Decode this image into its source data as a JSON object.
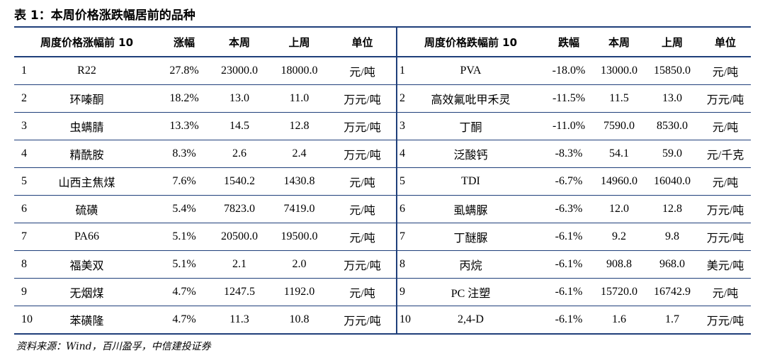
{
  "title": "表 1：本周价格涨跌幅居前的品种",
  "headers": {
    "rise_name": "周度价格涨幅前 10",
    "rise_pct": "涨幅",
    "this_week": "本周",
    "last_week": "上周",
    "unit": "单位",
    "fall_name": "周度价格跌幅前 10",
    "fall_pct": "跌幅",
    "this_week_2": "本周",
    "last_week_2": "上周",
    "unit_2": "单位"
  },
  "rows": [
    {
      "l_rank": "1",
      "l_name": "R22",
      "l_pct": "27.8%",
      "l_now": "23000.0",
      "l_prev": "18000.0",
      "l_unit": "元/吨",
      "r_rank": "1",
      "r_name": "PVA",
      "r_pct": "-18.0%",
      "r_now": "13000.0",
      "r_prev": "15850.0",
      "r_unit": "元/吨"
    },
    {
      "l_rank": "2",
      "l_name": "环嗪酮",
      "l_pct": "18.2%",
      "l_now": "13.0",
      "l_prev": "11.0",
      "l_unit": "万元/吨",
      "r_rank": "2",
      "r_name": "高效氟吡甲禾灵",
      "r_pct": "-11.5%",
      "r_now": "11.5",
      "r_prev": "13.0",
      "r_unit": "万元/吨"
    },
    {
      "l_rank": "3",
      "l_name": "虫螨腈",
      "l_pct": "13.3%",
      "l_now": "14.5",
      "l_prev": "12.8",
      "l_unit": "万元/吨",
      "r_rank": "3",
      "r_name": "丁酮",
      "r_pct": "-11.0%",
      "r_now": "7590.0",
      "r_prev": "8530.0",
      "r_unit": "元/吨"
    },
    {
      "l_rank": "4",
      "l_name": "精酰胺",
      "l_pct": "8.3%",
      "l_now": "2.6",
      "l_prev": "2.4",
      "l_unit": "万元/吨",
      "r_rank": "4",
      "r_name": "泛酸钙",
      "r_pct": "-8.3%",
      "r_now": "54.1",
      "r_prev": "59.0",
      "r_unit": "元/千克"
    },
    {
      "l_rank": "5",
      "l_name": "山西主焦煤",
      "l_pct": "7.6%",
      "l_now": "1540.2",
      "l_prev": "1430.8",
      "l_unit": "元/吨",
      "r_rank": "5",
      "r_name": "TDI",
      "r_pct": "-6.7%",
      "r_now": "14960.0",
      "r_prev": "16040.0",
      "r_unit": "元/吨"
    },
    {
      "l_rank": "6",
      "l_name": "硫磺",
      "l_pct": "5.4%",
      "l_now": "7823.0",
      "l_prev": "7419.0",
      "l_unit": "元/吨",
      "r_rank": "6",
      "r_name": "虱螨脲",
      "r_pct": "-6.3%",
      "r_now": "12.0",
      "r_prev": "12.8",
      "r_unit": "万元/吨"
    },
    {
      "l_rank": "7",
      "l_name": "PA66",
      "l_pct": "5.1%",
      "l_now": "20500.0",
      "l_prev": "19500.0",
      "l_unit": "元/吨",
      "r_rank": "7",
      "r_name": "丁醚脲",
      "r_pct": "-6.1%",
      "r_now": "9.2",
      "r_prev": "9.8",
      "r_unit": "万元/吨"
    },
    {
      "l_rank": "8",
      "l_name": "福美双",
      "l_pct": "5.1%",
      "l_now": "2.1",
      "l_prev": "2.0",
      "l_unit": "万元/吨",
      "r_rank": "8",
      "r_name": "丙烷",
      "r_pct": "-6.1%",
      "r_now": "908.8",
      "r_prev": "968.0",
      "r_unit": "美元/吨"
    },
    {
      "l_rank": "9",
      "l_name": "无烟煤",
      "l_pct": "4.7%",
      "l_now": "1247.5",
      "l_prev": "1192.0",
      "l_unit": "元/吨",
      "r_rank": "9",
      "r_name": "PC 注塑",
      "r_pct": "-6.1%",
      "r_now": "15720.0",
      "r_prev": "16742.9",
      "r_unit": "元/吨"
    },
    {
      "l_rank": "10",
      "l_name": "苯磺隆",
      "l_pct": "4.7%",
      "l_now": "11.3",
      "l_prev": "10.8",
      "l_unit": "万元/吨",
      "r_rank": "10",
      "r_name": "2,4-D",
      "r_pct": "-6.1%",
      "r_now": "1.6",
      "r_prev": "1.7",
      "r_unit": "万元/吨"
    }
  ],
  "source": "资料来源：Wind，百川盈孚，中信建投证券"
}
